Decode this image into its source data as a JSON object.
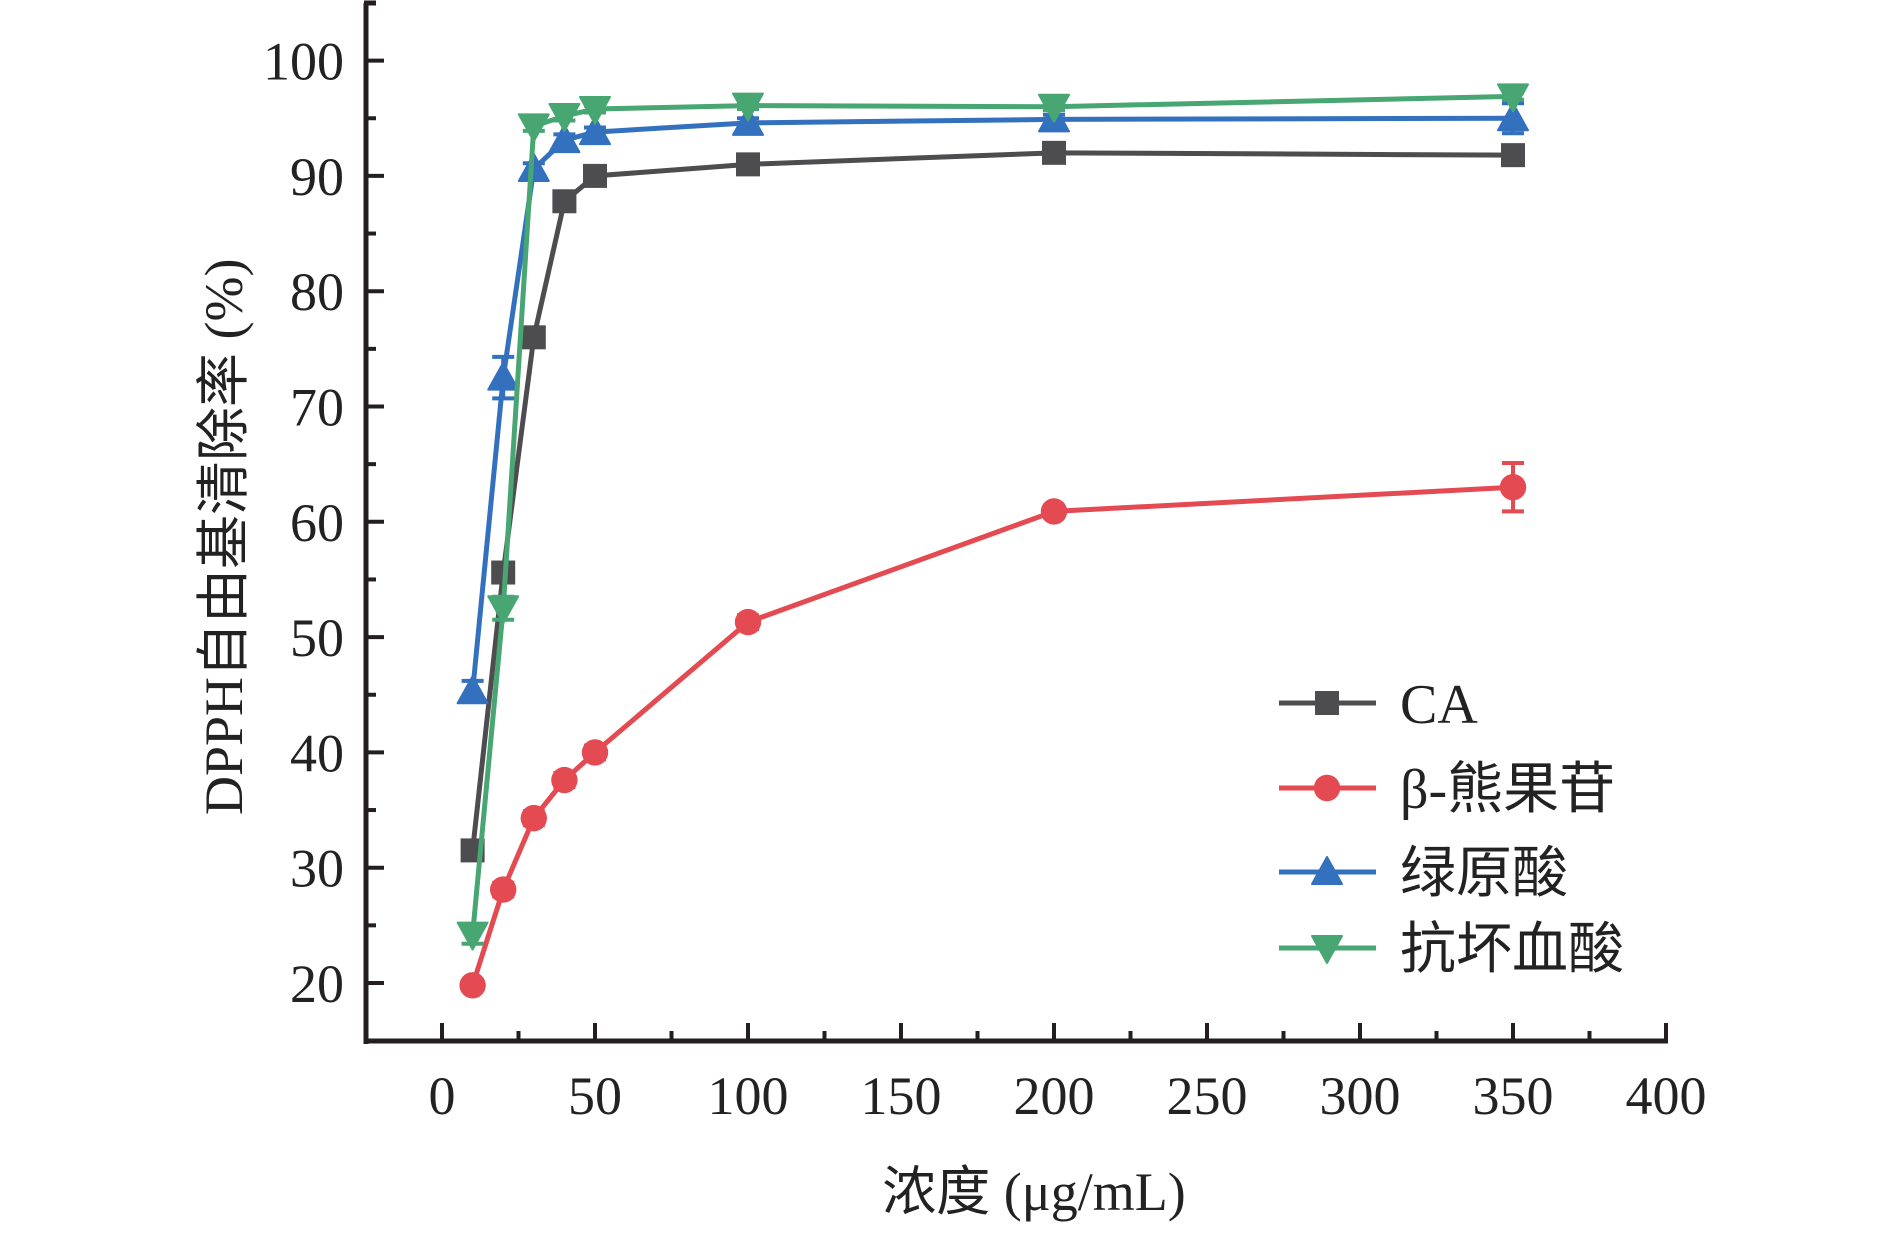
{
  "chart_data": {
    "type": "line",
    "title": "",
    "xlabel": "浓度 (μg/mL)",
    "ylabel": "DPPH自由基清除率 (%)",
    "xlim": [
      -25,
      400
    ],
    "ylim": [
      15,
      105
    ],
    "x_ticks": [
      0,
      50,
      100,
      150,
      200,
      250,
      300,
      350,
      400
    ],
    "y_ticks": [
      20,
      30,
      40,
      50,
      60,
      70,
      80,
      90,
      100
    ],
    "x_tick_labels": [
      "0",
      "50",
      "100",
      "150",
      "200",
      "250",
      "300",
      "350",
      "400"
    ],
    "y_tick_labels": [
      "20",
      "30",
      "40",
      "50",
      "60",
      "70",
      "80",
      "90",
      "100"
    ],
    "grid": false,
    "legend_position": "bottom-right",
    "x": [
      10,
      20,
      30,
      40,
      50,
      100,
      200,
      350
    ],
    "series": [
      {
        "name": "CA",
        "marker": "square",
        "color": "#4d4d4f",
        "values": [
          31.5,
          55.6,
          76.0,
          87.8,
          90.0,
          91.0,
          92.0,
          91.8
        ],
        "errors": [
          0.5,
          0.6,
          0.6,
          0.5,
          0.4,
          0.4,
          0.4,
          0.5
        ]
      },
      {
        "name": "β-熊果苷",
        "marker": "circle",
        "color": "#e34a51",
        "values": [
          19.8,
          28.1,
          34.3,
          37.6,
          40.0,
          51.3,
          60.9,
          63.0
        ],
        "errors": [
          0.4,
          0.6,
          0.6,
          0.6,
          0.6,
          0.6,
          0.5,
          2.1
        ]
      },
      {
        "name": "绿原酸",
        "marker": "triangle-up",
        "color": "#3371bf",
        "values": [
          45.3,
          72.5,
          90.6,
          93.1,
          93.8,
          94.6,
          94.9,
          95.0
        ],
        "errors": [
          0.9,
          1.8,
          0.5,
          0.5,
          0.4,
          0.4,
          0.4,
          1.3
        ]
      },
      {
        "name": "抗坏血酸",
        "marker": "triangle-down",
        "color": "#47a672",
        "values": [
          24.2,
          52.5,
          94.3,
          95.2,
          95.8,
          96.1,
          96.0,
          96.9
        ],
        "errors": [
          0.8,
          1.0,
          0.4,
          0.4,
          0.3,
          0.3,
          0.3,
          0.3
        ]
      }
    ]
  }
}
